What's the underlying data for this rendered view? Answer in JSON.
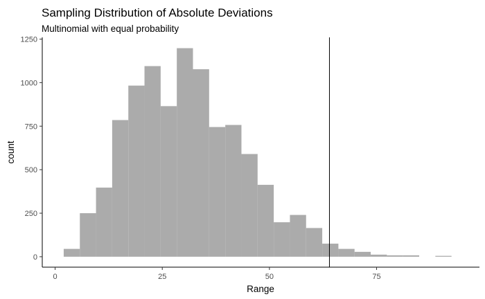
{
  "chart_data": {
    "type": "histogram",
    "title": "Sampling Distribution of Absolute Deviations",
    "subtitle": "Multinomial with equal probability",
    "xlabel": "Range",
    "ylabel": "count",
    "xlim": [
      -3,
      99
    ],
    "ylim": [
      -60,
      1260
    ],
    "x_ticks": [
      0,
      25,
      50,
      75
    ],
    "x_tick_labels": [
      "0",
      "25",
      "50",
      "75"
    ],
    "y_ticks": [
      0,
      250,
      500,
      750,
      1000,
      1250
    ],
    "y_tick_labels": [
      "0",
      "250",
      "500",
      "750",
      "1000",
      "1250"
    ],
    "bin_width": 3.77,
    "bin_start": 2,
    "values": [
      45,
      250,
      397,
      785,
      983,
      1095,
      865,
      1198,
      1077,
      745,
      757,
      590,
      413,
      198,
      240,
      165,
      75,
      45,
      28,
      12,
      8,
      8,
      0,
      5,
      0
    ],
    "bar_color": "#ababab",
    "vline_x": 64,
    "vline_color": "#000000",
    "grid": false,
    "legend": "none"
  }
}
